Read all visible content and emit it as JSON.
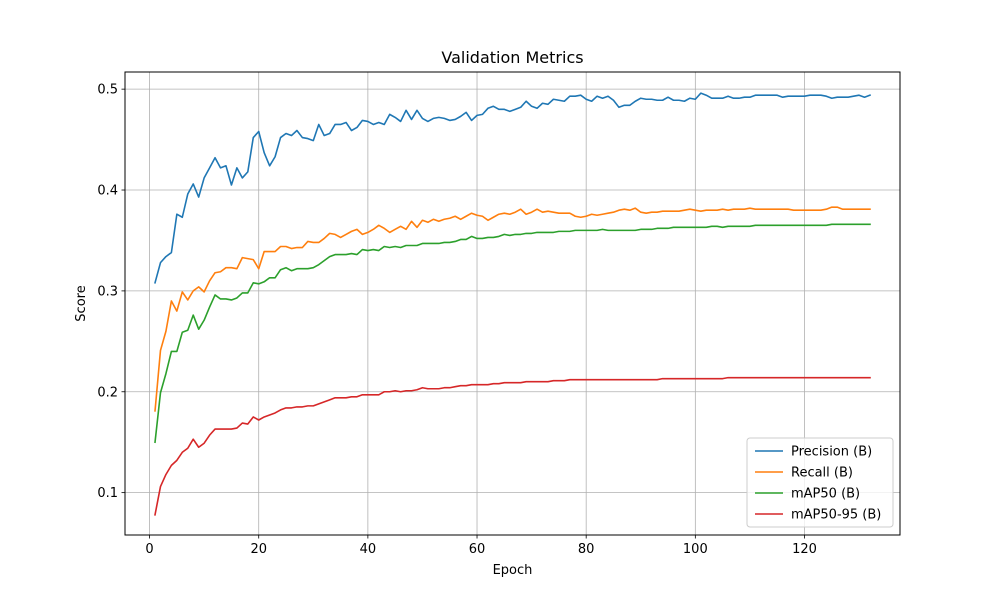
{
  "chart_data": {
    "type": "line",
    "title": "Validation Metrics",
    "xlabel": "Epoch",
    "ylabel": "Score",
    "xlim": [
      -4.5,
      137.5
    ],
    "ylim": [
      0.058,
      0.517
    ],
    "xticks": [
      0,
      20,
      40,
      60,
      80,
      100,
      120
    ],
    "yticks": [
      0.1,
      0.2,
      0.3,
      0.4,
      0.5
    ],
    "ytick_labels": [
      "0.1",
      "0.2",
      "0.3",
      "0.4",
      "0.5"
    ],
    "grid": true,
    "legend_position": "lower-right",
    "x_start": 1,
    "series": [
      {
        "name": "Precision (B)",
        "color": "#1f77b4",
        "values": [
          0.308,
          0.328,
          0.334,
          0.338,
          0.376,
          0.373,
          0.396,
          0.406,
          0.393,
          0.412,
          0.422,
          0.432,
          0.422,
          0.424,
          0.405,
          0.422,
          0.412,
          0.418,
          0.452,
          0.458,
          0.437,
          0.424,
          0.433,
          0.452,
          0.456,
          0.454,
          0.459,
          0.452,
          0.451,
          0.449,
          0.465,
          0.454,
          0.456,
          0.465,
          0.465,
          0.467,
          0.459,
          0.462,
          0.469,
          0.468,
          0.465,
          0.467,
          0.465,
          0.475,
          0.472,
          0.468,
          0.479,
          0.47,
          0.479,
          0.471,
          0.468,
          0.471,
          0.472,
          0.471,
          0.469,
          0.47,
          0.473,
          0.477,
          0.469,
          0.474,
          0.475,
          0.481,
          0.483,
          0.48,
          0.48,
          0.478,
          0.48,
          0.482,
          0.488,
          0.483,
          0.481,
          0.486,
          0.485,
          0.49,
          0.489,
          0.488,
          0.493,
          0.493,
          0.494,
          0.49,
          0.488,
          0.493,
          0.491,
          0.493,
          0.489,
          0.482,
          0.484,
          0.484,
          0.488,
          0.491,
          0.49,
          0.49,
          0.489,
          0.489,
          0.492,
          0.489,
          0.489,
          0.488,
          0.491,
          0.49,
          0.496,
          0.494,
          0.491,
          0.491,
          0.491,
          0.493,
          0.491,
          0.491,
          0.492,
          0.492,
          0.494,
          0.494,
          0.494,
          0.494,
          0.494,
          0.492,
          0.493,
          0.493,
          0.493,
          0.493,
          0.494,
          0.494,
          0.494,
          0.493,
          0.491,
          0.492,
          0.492,
          0.492,
          0.493,
          0.494,
          0.492,
          0.494
        ]
      },
      {
        "name": "Recall (B)",
        "color": "#ff7f0e",
        "values": [
          0.181,
          0.241,
          0.26,
          0.29,
          0.28,
          0.299,
          0.291,
          0.3,
          0.304,
          0.299,
          0.31,
          0.318,
          0.319,
          0.323,
          0.323,
          0.322,
          0.333,
          0.332,
          0.331,
          0.322,
          0.339,
          0.339,
          0.339,
          0.344,
          0.344,
          0.342,
          0.343,
          0.343,
          0.349,
          0.348,
          0.348,
          0.352,
          0.357,
          0.356,
          0.353,
          0.356,
          0.359,
          0.361,
          0.356,
          0.358,
          0.361,
          0.365,
          0.362,
          0.358,
          0.361,
          0.364,
          0.361,
          0.369,
          0.363,
          0.37,
          0.368,
          0.371,
          0.369,
          0.371,
          0.372,
          0.374,
          0.371,
          0.374,
          0.377,
          0.375,
          0.374,
          0.37,
          0.373,
          0.376,
          0.377,
          0.376,
          0.378,
          0.381,
          0.376,
          0.378,
          0.381,
          0.378,
          0.379,
          0.378,
          0.377,
          0.377,
          0.377,
          0.374,
          0.373,
          0.374,
          0.376,
          0.375,
          0.376,
          0.377,
          0.378,
          0.38,
          0.381,
          0.38,
          0.382,
          0.378,
          0.377,
          0.378,
          0.378,
          0.379,
          0.379,
          0.379,
          0.379,
          0.38,
          0.381,
          0.38,
          0.379,
          0.38,
          0.38,
          0.38,
          0.381,
          0.38,
          0.381,
          0.381,
          0.381,
          0.382,
          0.381,
          0.381,
          0.381,
          0.381,
          0.381,
          0.381,
          0.381,
          0.38,
          0.38,
          0.38,
          0.38,
          0.38,
          0.38,
          0.381,
          0.383,
          0.383,
          0.381,
          0.381,
          0.381,
          0.381,
          0.381,
          0.381
        ]
      },
      {
        "name": "mAP50 (B)",
        "color": "#2ca02c",
        "values": [
          0.15,
          0.199,
          0.218,
          0.24,
          0.24,
          0.259,
          0.261,
          0.276,
          0.262,
          0.271,
          0.284,
          0.296,
          0.292,
          0.292,
          0.291,
          0.293,
          0.298,
          0.298,
          0.308,
          0.307,
          0.309,
          0.313,
          0.313,
          0.321,
          0.323,
          0.32,
          0.322,
          0.322,
          0.322,
          0.323,
          0.326,
          0.33,
          0.334,
          0.336,
          0.336,
          0.336,
          0.337,
          0.336,
          0.341,
          0.34,
          0.341,
          0.34,
          0.344,
          0.343,
          0.344,
          0.343,
          0.345,
          0.345,
          0.345,
          0.347,
          0.347,
          0.347,
          0.347,
          0.348,
          0.348,
          0.349,
          0.351,
          0.351,
          0.354,
          0.352,
          0.352,
          0.353,
          0.353,
          0.354,
          0.356,
          0.355,
          0.356,
          0.356,
          0.357,
          0.357,
          0.358,
          0.358,
          0.358,
          0.358,
          0.359,
          0.359,
          0.359,
          0.36,
          0.36,
          0.36,
          0.36,
          0.36,
          0.361,
          0.36,
          0.36,
          0.36,
          0.36,
          0.36,
          0.36,
          0.361,
          0.361,
          0.361,
          0.362,
          0.362,
          0.362,
          0.363,
          0.363,
          0.363,
          0.363,
          0.363,
          0.363,
          0.363,
          0.364,
          0.364,
          0.363,
          0.364,
          0.364,
          0.364,
          0.364,
          0.364,
          0.365,
          0.365,
          0.365,
          0.365,
          0.365,
          0.365,
          0.365,
          0.365,
          0.365,
          0.365,
          0.365,
          0.365,
          0.365,
          0.365,
          0.366,
          0.366,
          0.366,
          0.366,
          0.366,
          0.366,
          0.366,
          0.366
        ]
      },
      {
        "name": "mAP50-95 (B)",
        "color": "#d62728",
        "values": [
          0.078,
          0.106,
          0.118,
          0.127,
          0.132,
          0.14,
          0.144,
          0.153,
          0.145,
          0.149,
          0.157,
          0.163,
          0.163,
          0.163,
          0.163,
          0.164,
          0.169,
          0.168,
          0.175,
          0.172,
          0.175,
          0.177,
          0.179,
          0.182,
          0.184,
          0.184,
          0.185,
          0.185,
          0.186,
          0.186,
          0.188,
          0.19,
          0.192,
          0.194,
          0.194,
          0.194,
          0.195,
          0.195,
          0.197,
          0.197,
          0.197,
          0.197,
          0.2,
          0.2,
          0.201,
          0.2,
          0.201,
          0.201,
          0.202,
          0.204,
          0.203,
          0.203,
          0.203,
          0.204,
          0.204,
          0.205,
          0.206,
          0.206,
          0.207,
          0.207,
          0.207,
          0.207,
          0.208,
          0.208,
          0.209,
          0.209,
          0.209,
          0.209,
          0.21,
          0.21,
          0.21,
          0.21,
          0.21,
          0.211,
          0.211,
          0.211,
          0.212,
          0.212,
          0.212,
          0.212,
          0.212,
          0.212,
          0.212,
          0.212,
          0.212,
          0.212,
          0.212,
          0.212,
          0.212,
          0.212,
          0.212,
          0.212,
          0.212,
          0.213,
          0.213,
          0.213,
          0.213,
          0.213,
          0.213,
          0.213,
          0.213,
          0.213,
          0.213,
          0.213,
          0.213,
          0.214,
          0.214,
          0.214,
          0.214,
          0.214,
          0.214,
          0.214,
          0.214,
          0.214,
          0.214,
          0.214,
          0.214,
          0.214,
          0.214,
          0.214,
          0.214,
          0.214,
          0.214,
          0.214,
          0.214,
          0.214,
          0.214,
          0.214,
          0.214,
          0.214,
          0.214,
          0.214
        ]
      }
    ]
  }
}
